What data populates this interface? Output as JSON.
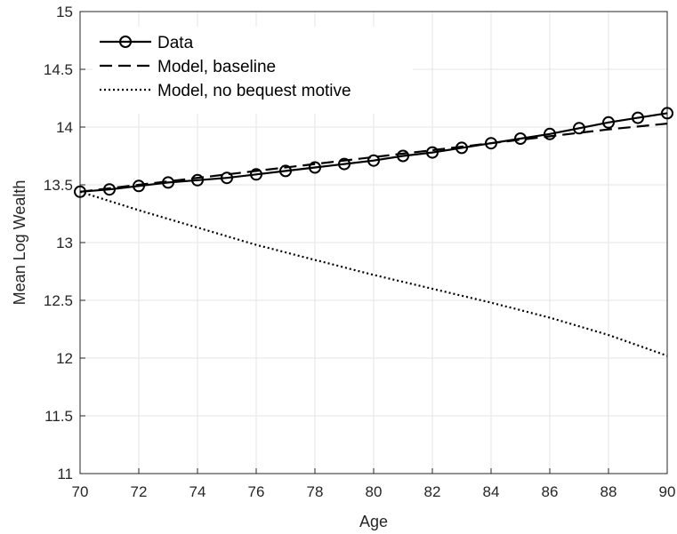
{
  "chart_data": {
    "type": "line",
    "title": "",
    "xlabel": "Age",
    "ylabel": "Mean Log Wealth",
    "xlim": [
      70,
      90
    ],
    "ylim": [
      11,
      15
    ],
    "xticks": [
      70,
      72,
      74,
      76,
      78,
      80,
      82,
      84,
      86,
      88,
      90
    ],
    "yticks": [
      11,
      11.5,
      12,
      12.5,
      13,
      13.5,
      14,
      14.5,
      15
    ],
    "xtick_labels": [
      "70",
      "72",
      "74",
      "76",
      "78",
      "80",
      "82",
      "84",
      "86",
      "88",
      "90"
    ],
    "ytick_labels": [
      "11",
      "11.5",
      "12",
      "12.5",
      "13",
      "13.5",
      "14",
      "14.5",
      "15"
    ],
    "grid": true,
    "legend_position": "top-left",
    "series": [
      {
        "name": "Data",
        "style": "solid-circle",
        "color": "#000000",
        "x": [
          70,
          71,
          72,
          73,
          74,
          75,
          76,
          77,
          78,
          79,
          80,
          81,
          82,
          83,
          84,
          85,
          86,
          87,
          88,
          89,
          90
        ],
        "y": [
          13.44,
          13.46,
          13.49,
          13.52,
          13.54,
          13.56,
          13.59,
          13.62,
          13.65,
          13.68,
          13.71,
          13.75,
          13.78,
          13.82,
          13.86,
          13.9,
          13.94,
          13.99,
          14.04,
          14.08,
          14.12
        ]
      },
      {
        "name": "Model, baseline",
        "style": "dashed",
        "color": "#000000",
        "x": [
          70,
          72,
          74,
          76,
          78,
          80,
          82,
          84,
          86,
          88,
          90
        ],
        "y": [
          13.44,
          13.5,
          13.56,
          13.62,
          13.68,
          13.74,
          13.8,
          13.86,
          13.92,
          13.98,
          14.03
        ]
      },
      {
        "name": "Model, no bequest motive",
        "style": "dotted",
        "color": "#000000",
        "x": [
          70,
          72,
          74,
          76,
          78,
          80,
          82,
          84,
          86,
          88,
          90
        ],
        "y": [
          13.44,
          13.28,
          13.13,
          12.98,
          12.85,
          12.72,
          12.6,
          12.48,
          12.35,
          12.2,
          12.02
        ]
      }
    ]
  }
}
